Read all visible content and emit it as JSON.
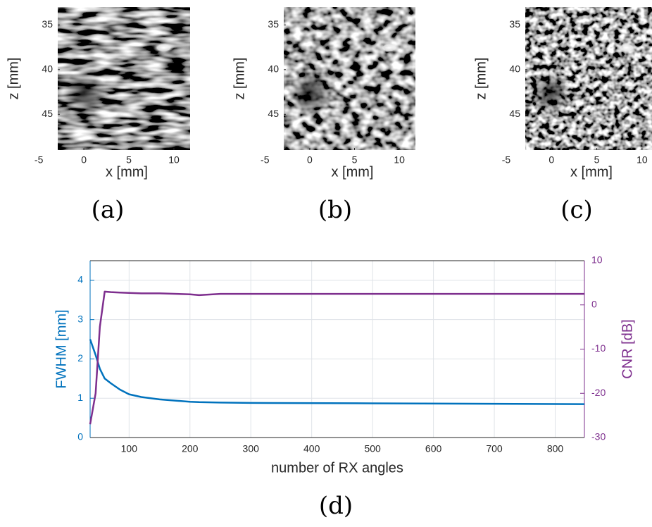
{
  "chart_data": [
    {
      "type": "image",
      "caption": "(a)",
      "xlabel": "x [mm]",
      "ylabel": "z [mm]",
      "xlim": [
        -2.9,
        11.8
      ],
      "ylim": [
        49,
        33
      ],
      "xticks": [
        -5,
        0,
        5,
        10
      ],
      "yticks": [
        35,
        40,
        45
      ]
    },
    {
      "type": "image",
      "caption": "(b)",
      "xlabel": "x [mm]",
      "ylabel": "z [mm]",
      "xlim": [
        -2.9,
        11.8
      ],
      "ylim": [
        49,
        33
      ],
      "xticks": [
        -5,
        0,
        5,
        10
      ],
      "yticks": [
        35,
        40,
        45
      ]
    },
    {
      "type": "image",
      "caption": "(c)",
      "xlabel": "x [mm]",
      "ylabel": "z [mm]",
      "xlim": [
        -2.9,
        11.1
      ],
      "ylim": [
        49,
        33
      ],
      "xticks": [
        -5,
        0,
        5,
        10
      ],
      "yticks": [
        35,
        40,
        45
      ]
    },
    {
      "type": "line",
      "caption": "(d)",
      "xlabel": "number of RX angles",
      "ylabel": "FWHM [mm]",
      "y2label": "CNR [dB]",
      "x": [
        36,
        45,
        52,
        60,
        70,
        85,
        100,
        120,
        150,
        200,
        215,
        250,
        300,
        500,
        848
      ],
      "series": [
        {
          "color": "#0072bd",
          "values": [
            2.5,
            2.1,
            1.75,
            1.5,
            1.38,
            1.22,
            1.1,
            1.03,
            0.97,
            0.91,
            0.9,
            0.89,
            0.88,
            0.87,
            0.85
          ]
        },
        {
          "color": "#7e2f8e",
          "axis": "y2",
          "values": [
            -27,
            -20,
            -5,
            3,
            2.9,
            2.8,
            2.7,
            2.6,
            2.6,
            2.4,
            2.2,
            2.5,
            2.5,
            2.5,
            2.5
          ]
        }
      ],
      "xlim": [
        36,
        848
      ],
      "xticks": [
        100,
        200,
        300,
        400,
        500,
        600,
        700,
        800
      ],
      "ylim": [
        0,
        4.5
      ],
      "yticks": [
        0,
        1,
        2,
        3,
        4
      ],
      "y2lim": [
        -30,
        10
      ],
      "y2ticks": [
        -30,
        -20,
        -10,
        0,
        10
      ],
      "grid": true
    }
  ]
}
